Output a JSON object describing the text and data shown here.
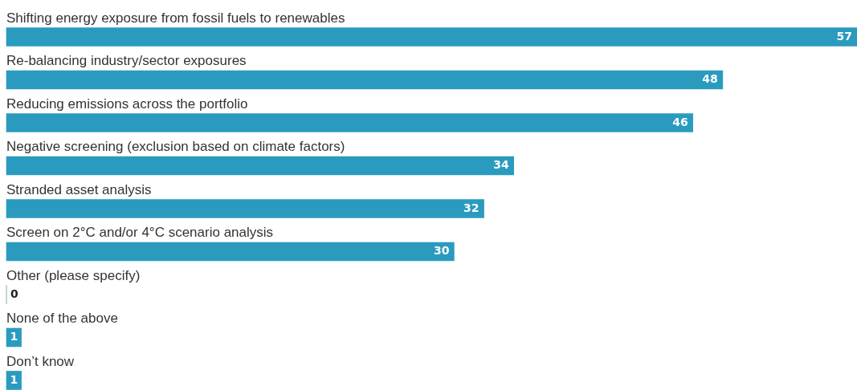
{
  "chart_data": {
    "type": "bar",
    "orientation": "horizontal",
    "categories": [
      "Shifting energy exposure from fossil fuels to renewables",
      "Re-balancing industry/sector exposures",
      "Reducing emissions across the portfolio",
      "Negative screening (exclusion based on climate factors)",
      "Stranded asset analysis",
      "Screen on 2°C and/or 4°C scenario analysis",
      "Other (please specify)",
      "None of the above",
      "Don’t know"
    ],
    "values": [
      57,
      48,
      46,
      34,
      32,
      30,
      0,
      1,
      1
    ],
    "color": "#2a9bbf",
    "data_labels": true
  }
}
